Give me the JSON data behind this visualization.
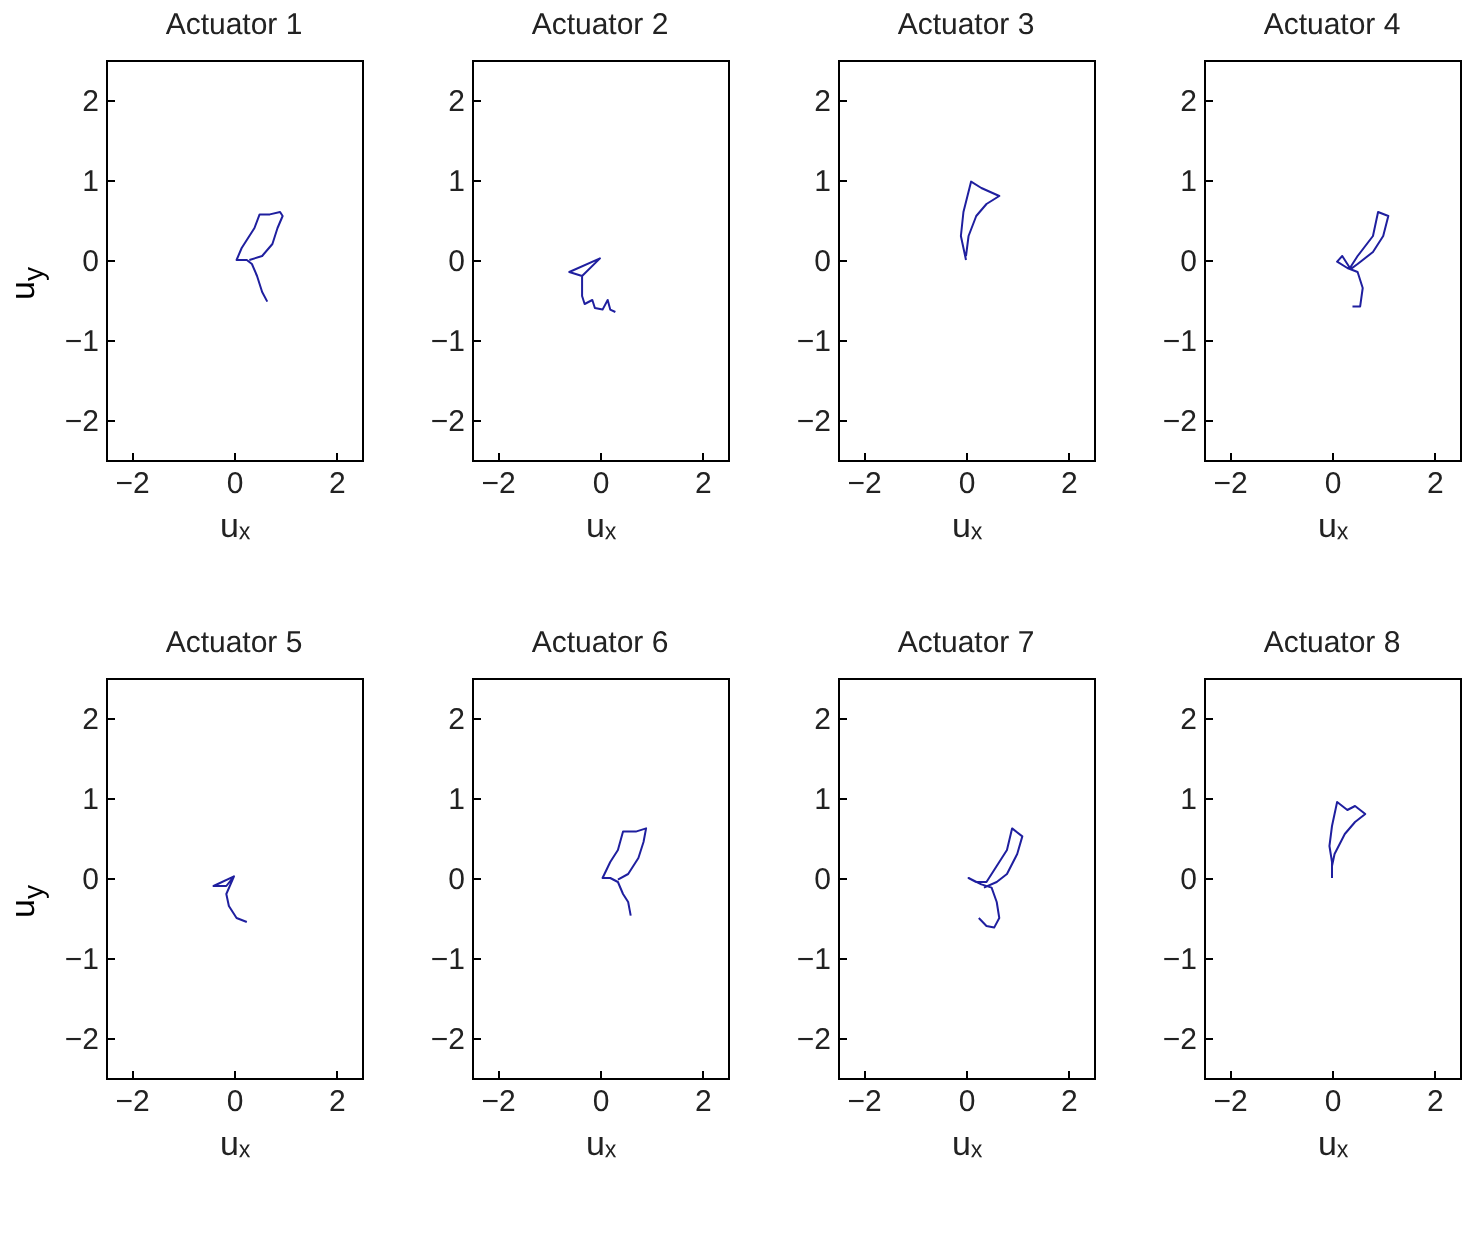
{
  "chart_data": [
    {
      "type": "line",
      "title": "Actuator 1",
      "xlabel": "uₓ",
      "ylabel": "u$_{y}$",
      "xlim": [
        -2.5,
        2.5
      ],
      "ylim": [
        -2.5,
        2.5
      ],
      "xticks": [
        -2,
        0,
        2
      ],
      "yticks": [
        -2,
        -1,
        0,
        1,
        2
      ],
      "series": [
        {
          "color": "#1f1f9f",
          "x": [
            0.65,
            0.55,
            0.45,
            0.35,
            0.25,
            0.05,
            0.15,
            0.3,
            0.4,
            0.5,
            0.7,
            0.9,
            0.95,
            0.85,
            0.75,
            0.55,
            0.3
          ],
          "values": [
            -0.52,
            -0.4,
            -0.2,
            -0.05,
            0,
            0,
            0.15,
            0.3,
            0.4,
            0.57,
            0.57,
            0.6,
            0.55,
            0.4,
            0.2,
            0.05,
            0
          ]
        }
      ]
    },
    {
      "type": "line",
      "title": "Actuator 2",
      "xlabel": "uₓ",
      "xlim": [
        -2.5,
        2.5
      ],
      "ylim": [
        -2.5,
        2.5
      ],
      "xticks": [
        -2,
        0,
        2
      ],
      "yticks": [
        -2,
        -1,
        0,
        1,
        2
      ],
      "series": [
        {
          "color": "#1f1f9f",
          "x": [
            0,
            -0.6,
            -0.35,
            0,
            -0.35,
            -0.35,
            -0.3,
            -0.15,
            -0.1,
            0.05,
            0.15,
            0.2,
            0.3
          ],
          "values": [
            0.02,
            -0.15,
            -0.2,
            0.02,
            -0.2,
            -0.45,
            -0.55,
            -0.5,
            -0.6,
            -0.62,
            -0.5,
            -0.62,
            -0.65
          ]
        }
      ]
    },
    {
      "type": "line",
      "title": "Actuator 3",
      "xlabel": "uₓ",
      "xlim": [
        -2.5,
        2.5
      ],
      "ylim": [
        -2.5,
        2.5
      ],
      "xticks": [
        -2,
        0,
        2
      ],
      "yticks": [
        -2,
        -1,
        0,
        1,
        2
      ],
      "series": [
        {
          "color": "#1f1f9f",
          "x": [
            0,
            -0.1,
            -0.05,
            0.1,
            0.3,
            0.65,
            0.4,
            0.2,
            0.05,
            0
          ],
          "values": [
            0,
            0.3,
            0.6,
            0.98,
            0.9,
            0.8,
            0.7,
            0.55,
            0.3,
            0.05
          ]
        }
      ]
    },
    {
      "type": "line",
      "title": "Actuator 4",
      "xlabel": "uₓ",
      "xlim": [
        -2.5,
        2.5
      ],
      "ylim": [
        -2.5,
        2.5
      ],
      "xticks": [
        -2,
        0,
        2
      ],
      "yticks": [
        -2,
        -1,
        0,
        1,
        2
      ],
      "series": [
        {
          "color": "#1f1f9f",
          "x": [
            0.4,
            0.55,
            0.6,
            0.5,
            0.3,
            0.1,
            0.2,
            0.35,
            0.5,
            0.8,
            0.9,
            1.1,
            1,
            0.8,
            0.5,
            0.35
          ],
          "values": [
            -0.58,
            -0.58,
            -0.35,
            -0.15,
            -0.1,
            -0.02,
            0.05,
            -0.1,
            0.05,
            0.3,
            0.6,
            0.55,
            0.3,
            0.1,
            -0.05,
            -0.12
          ]
        }
      ]
    },
    {
      "type": "line",
      "title": "Actuator 5",
      "xlabel": "uₓ",
      "ylabel": "u$_{y}$",
      "xlim": [
        -2.5,
        2.5
      ],
      "ylim": [
        -2.5,
        2.5
      ],
      "xticks": [
        -2,
        0,
        2
      ],
      "yticks": [
        -2,
        -1,
        0,
        1,
        2
      ],
      "series": [
        {
          "color": "#1f1f9f",
          "x": [
            0,
            -0.4,
            -0.15,
            0,
            -0.15,
            -0.1,
            0.05,
            0.25
          ],
          "values": [
            0.02,
            -0.1,
            -0.1,
            0.02,
            -0.2,
            -0.35,
            -0.5,
            -0.55
          ]
        }
      ]
    },
    {
      "type": "line",
      "title": "Actuator 6",
      "xlabel": "uₓ",
      "xlim": [
        -2.5,
        2.5
      ],
      "ylim": [
        -2.5,
        2.5
      ],
      "xticks": [
        -2,
        0,
        2
      ],
      "yticks": [
        -2,
        -1,
        0,
        1,
        2
      ],
      "series": [
        {
          "color": "#1f1f9f",
          "x": [
            0.6,
            0.55,
            0.45,
            0.35,
            0.2,
            0.05,
            0.2,
            0.35,
            0.45,
            0.7,
            0.9,
            0.85,
            0.75,
            0.55,
            0.35
          ],
          "values": [
            -0.47,
            -0.3,
            -0.2,
            -0.05,
            0,
            0,
            0.2,
            0.35,
            0.58,
            0.58,
            0.62,
            0.45,
            0.25,
            0.05,
            -0.02
          ]
        }
      ]
    },
    {
      "type": "line",
      "title": "Actuator 7",
      "xlabel": "uₓ",
      "xlim": [
        -2.5,
        2.5
      ],
      "ylim": [
        -2.5,
        2.5
      ],
      "xticks": [
        -2,
        0,
        2
      ],
      "yticks": [
        -2,
        -1,
        0,
        1,
        2
      ],
      "series": [
        {
          "color": "#1f1f9f",
          "x": [
            0.25,
            0.4,
            0.55,
            0.65,
            0.6,
            0.5,
            0.3,
            0.05,
            0.2,
            0.4,
            0.6,
            0.8,
            0.9,
            1.1,
            1,
            0.8,
            0.6,
            0.35
          ],
          "values": [
            -0.5,
            -0.6,
            -0.62,
            -0.5,
            -0.3,
            -0.12,
            -0.08,
            0,
            -0.05,
            -0.05,
            0.15,
            0.35,
            0.62,
            0.52,
            0.3,
            0.05,
            -0.05,
            -0.12
          ]
        }
      ]
    },
    {
      "type": "line",
      "title": "Actuator 8",
      "xlabel": "uₓ",
      "xlim": [
        -2.5,
        2.5
      ],
      "ylim": [
        -2.5,
        2.5
      ],
      "xticks": [
        -2,
        0,
        2
      ],
      "yticks": [
        -2,
        -1,
        0,
        1,
        2
      ],
      "series": [
        {
          "color": "#1f1f9f",
          "x": [
            0,
            0,
            -0.05,
            0,
            0.1,
            0.3,
            0.45,
            0.65,
            0.45,
            0.25,
            0.05,
            0
          ],
          "values": [
            0,
            0.2,
            0.4,
            0.65,
            0.95,
            0.85,
            0.9,
            0.8,
            0.7,
            0.55,
            0.3,
            0.15
          ]
        }
      ]
    }
  ]
}
